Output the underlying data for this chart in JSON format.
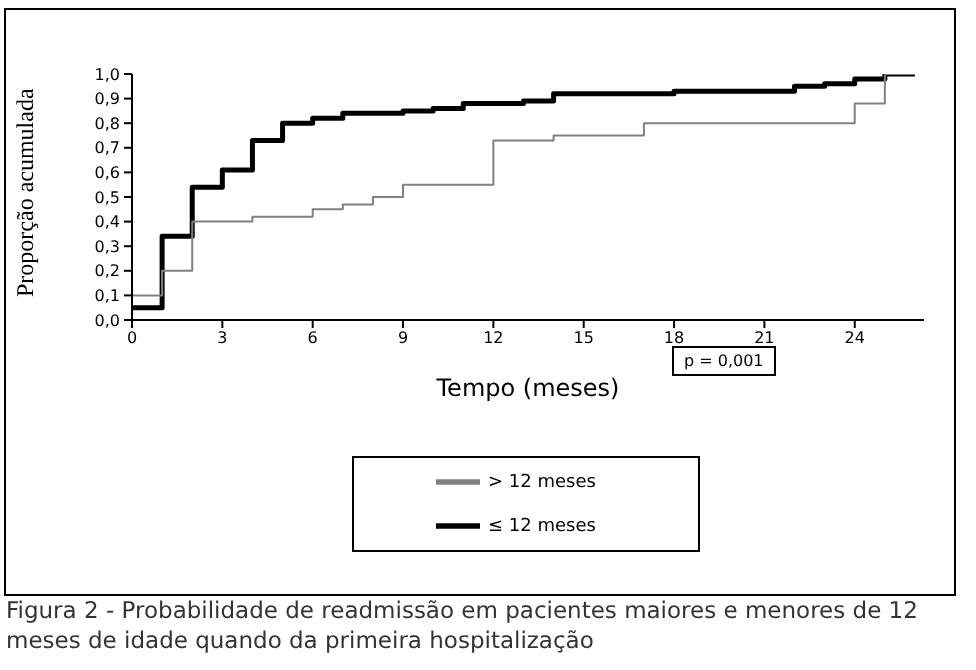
{
  "chart_data": {
    "type": "step",
    "ylabel": "Proporção acumulada",
    "xlabel": "Tempo (meses)",
    "xlim": [
      0,
      26.3
    ],
    "xticks": [
      0,
      3,
      6,
      9,
      12,
      15,
      18,
      21,
      24
    ],
    "ylim": [
      0,
      1
    ],
    "yticks": [
      {
        "value": 0,
        "label": "0,0"
      },
      {
        "value": 0.1,
        "label": "0,1"
      },
      {
        "value": 0.2,
        "label": "0,2"
      },
      {
        "value": 0.3,
        "label": "0,3"
      },
      {
        "value": 0.4,
        "label": "0,4"
      },
      {
        "value": 0.5,
        "label": "0,5"
      },
      {
        "value": 0.6,
        "label": "0,6"
      },
      {
        "value": 0.7,
        "label": "0,7"
      },
      {
        "value": 0.8,
        "label": "0,8"
      },
      {
        "value": 0.9,
        "label": "0,9"
      },
      {
        "value": 1,
        "label": "1,0"
      }
    ],
    "series": [
      {
        "name": "≤ 12 meses",
        "color": "#000000",
        "x": [
          0,
          1,
          2,
          3,
          4,
          5,
          6,
          7,
          9,
          10,
          11,
          13,
          14,
          18,
          22,
          23,
          24,
          25,
          26
        ],
        "values": [
          0.05,
          0.34,
          0.54,
          0.61,
          0.73,
          0.8,
          0.82,
          0.84,
          0.85,
          0.86,
          0.88,
          0.89,
          0.92,
          0.93,
          0.95,
          0.96,
          0.98,
          1.0,
          1.0
        ]
      },
      {
        "name": "> 12 meses",
        "color": "#808080",
        "x": [
          0,
          1,
          2,
          4,
          6,
          7,
          8,
          9,
          12,
          14,
          17,
          24,
          25,
          26
        ],
        "values": [
          0.1,
          0.2,
          0.4,
          0.42,
          0.45,
          0.47,
          0.5,
          0.55,
          0.73,
          0.75,
          0.8,
          0.88,
          1.0,
          1.0
        ]
      }
    ],
    "legend": "bottom",
    "grid": false,
    "marker": "none",
    "line_style": "solid",
    "annotations": [
      "p = 0,001",
      "Figura 2 - Probabilidade de readmissão em pacientes maiores e menores de 12 meses de idade quando da primeira hospitalização"
    ]
  }
}
